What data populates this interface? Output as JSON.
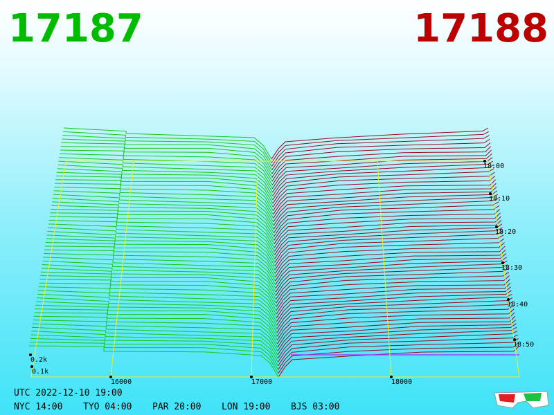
{
  "header": {
    "left": "17187",
    "right": "17188"
  },
  "axis": {
    "price_labels": [
      "16000",
      "17000",
      "18000"
    ],
    "time_labels": [
      "18:00",
      "18:10",
      "18:20",
      "18:30",
      "18:40",
      "18:50"
    ],
    "volume_labels": [
      "0.2k",
      "0.1k"
    ]
  },
  "footer": {
    "utc": "UTC 2022-12-10 19:00",
    "zones": [
      "NYC 14:00",
      "TYO 04:00",
      "PAR 20:00",
      "LON 19:00",
      "BJS 03:00"
    ]
  }
}
